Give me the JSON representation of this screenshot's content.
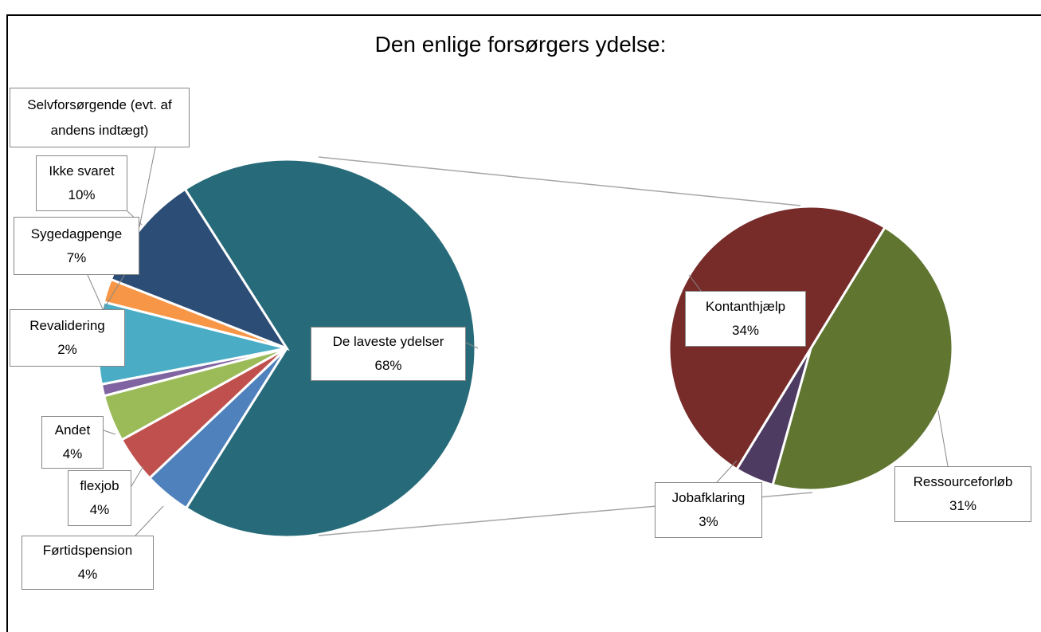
{
  "chart_data": {
    "type": "pie",
    "title": "Den enlige forsørgers ydelse:",
    "categories": [
      "De laveste ydelser",
      "Førtidspension",
      "flexjob",
      "Andet",
      "Selvforsørgende (evt. af andens indtægt)",
      "Sygedagpenge",
      "Revalidering",
      "Ikke svaret"
    ],
    "values": [
      68,
      4,
      4,
      4,
      1,
      7,
      2,
      10
    ],
    "value_labels": [
      "68%",
      "4%",
      "4%",
      "4%",
      null,
      "7%",
      "2%",
      "10%"
    ],
    "colors": [
      "#276b7a",
      "#4f81bd",
      "#c0504d",
      "#9bbb59",
      "#8064a2",
      "#4bacc6",
      "#f79646",
      "#2c4d75"
    ],
    "breakdown": {
      "categories": [
        "Ressourceforløb",
        "Jobafklaring",
        "Kontanthjælp"
      ],
      "values": [
        31,
        3,
        34
      ],
      "value_labels": [
        "31%",
        "3%",
        "34%"
      ],
      "colors": [
        "#5f7530",
        "#4d3b62",
        "#772c2a"
      ]
    }
  }
}
